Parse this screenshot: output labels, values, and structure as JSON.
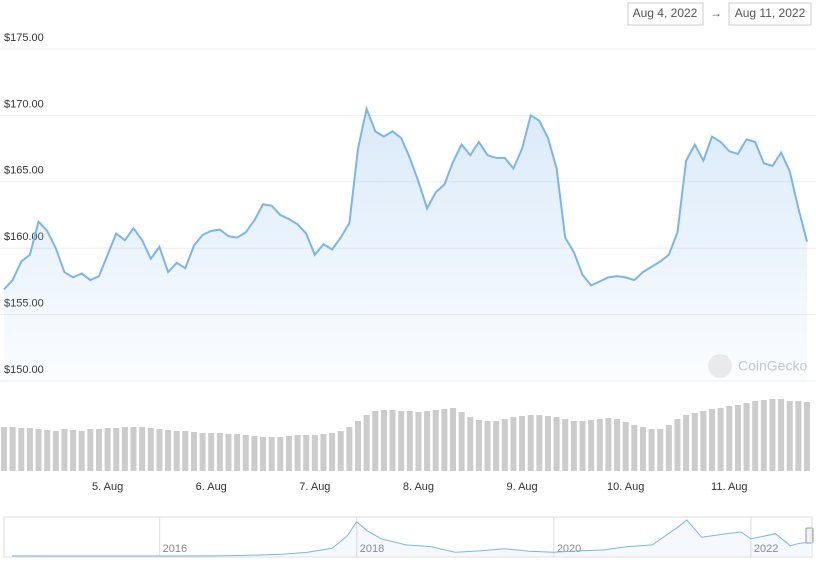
{
  "header": {
    "date_from": "Aug 4, 2022",
    "separator": "→",
    "date_to": "Aug 11, 2022"
  },
  "chart_data": {
    "type": "line",
    "watermark": "CoinGecko",
    "categories": [
      null,
      null,
      null,
      null,
      null,
      null,
      null,
      null,
      null,
      null,
      null,
      null,
      "5. Aug",
      null,
      null,
      null,
      null,
      null,
      null,
      null,
      null,
      null,
      null,
      null,
      "6. Aug",
      null,
      null,
      null,
      null,
      null,
      null,
      null,
      null,
      null,
      null,
      null,
      "7. Aug",
      null,
      null,
      null,
      null,
      null,
      null,
      null,
      null,
      null,
      null,
      null,
      "8. Aug",
      null,
      null,
      null,
      null,
      null,
      null,
      null,
      null,
      null,
      null,
      null,
      "9. Aug",
      null,
      null,
      null,
      null,
      null,
      null,
      null,
      null,
      null,
      null,
      null,
      "10. Aug",
      null,
      null,
      null,
      null,
      null,
      null,
      null,
      null,
      null,
      null,
      null,
      "11. Aug",
      null,
      null,
      null,
      null,
      null,
      null,
      null,
      null,
      null
    ],
    "series": [
      {
        "color": "#7cb5ec",
        "values": [
          156.9,
          157.6,
          159.0,
          159.5,
          162.0,
          161.3,
          160.0,
          158.2,
          157.8,
          158.1,
          157.6,
          157.9,
          159.5,
          161.1,
          160.6,
          161.5,
          160.6,
          159.2,
          160.1,
          158.2,
          158.9,
          158.5,
          160.2,
          161.0,
          161.3,
          161.4,
          160.9,
          160.8,
          161.2,
          162.1,
          163.3,
          163.2,
          162.5,
          162.2,
          161.8,
          161.1,
          159.5,
          160.3,
          159.9,
          160.8,
          161.9,
          167.5,
          170.5,
          168.8,
          168.4,
          168.8,
          168.3,
          166.8,
          165.0,
          163.0,
          164.2,
          164.8,
          166.5,
          167.8,
          167.0,
          168.0,
          167.0,
          166.8,
          166.8,
          166.0,
          167.5,
          170.0,
          169.6,
          168.3,
          166.0,
          160.8,
          159.7,
          158.0,
          157.2,
          157.5,
          157.8,
          157.9,
          157.8,
          157.6,
          158.2,
          158.6,
          159.0,
          159.5,
          161.2,
          166.6,
          167.8,
          166.6,
          168.4,
          168.0,
          167.3,
          167.1,
          168.2,
          168.0,
          166.4,
          166.2,
          167.2,
          165.8,
          163.0,
          160.5
        ]
      }
    ],
    "volume": {
      "color": "#cccccc",
      "values": [
        44,
        44,
        43,
        43,
        42,
        41,
        40,
        42,
        41,
        40,
        42,
        42,
        43,
        43,
        44,
        44,
        44,
        43,
        42,
        41,
        40,
        40,
        39,
        38,
        38,
        38,
        37,
        37,
        36,
        35,
        34,
        34,
        34,
        35,
        36,
        36,
        36,
        37,
        38,
        40,
        44,
        50,
        56,
        60,
        61,
        61,
        60,
        60,
        59,
        60,
        61,
        62,
        63,
        59,
        54,
        51,
        50,
        50,
        52,
        54,
        55,
        56,
        56,
        55,
        54,
        52,
        50,
        50,
        51,
        52,
        53,
        52,
        49,
        46,
        44,
        42,
        42,
        46,
        52,
        56,
        58,
        60,
        62,
        63,
        65,
        66,
        68,
        70,
        71,
        72,
        72,
        70,
        70,
        69
      ]
    },
    "ylim": [
      150,
      175
    ],
    "yticks": [
      {
        "value": 150,
        "label": "$150.00"
      },
      {
        "value": 155,
        "label": "$155.00"
      },
      {
        "value": 160,
        "label": "$160.00"
      },
      {
        "value": 165,
        "label": "$165.00"
      },
      {
        "value": 170,
        "label": "$170.00"
      },
      {
        "value": 175,
        "label": "$175.00"
      }
    ],
    "grid": true,
    "navigator": {
      "type": "line",
      "color": "#7cb5ec",
      "x": [
        2014.5,
        2015,
        2015.5,
        2016,
        2016.5,
        2016.75,
        2017,
        2017.25,
        2017.5,
        2017.75,
        2017.9,
        2018.0,
        2018.1,
        2018.25,
        2018.5,
        2018.75,
        2019,
        2019.25,
        2019.5,
        2019.75,
        2020,
        2020.25,
        2020.5,
        2020.75,
        2021,
        2021.25,
        2021.35,
        2021.5,
        2021.75,
        2021.9,
        2022,
        2022.25,
        2022.4,
        2022.5,
        2022.6
      ],
      "values": [
        2,
        0.5,
        0.6,
        0.5,
        1.5,
        5,
        12,
        20,
        45,
        90,
        230,
        400,
        300,
        200,
        130,
        110,
        45,
        60,
        85,
        55,
        45,
        60,
        70,
        110,
        130,
        330,
        420,
        220,
        260,
        280,
        200,
        260,
        120,
        150,
        160
      ],
      "xlim": [
        2014.42,
        2022.6
      ],
      "xticks": [
        2016,
        2018,
        2020,
        2022
      ]
    }
  }
}
